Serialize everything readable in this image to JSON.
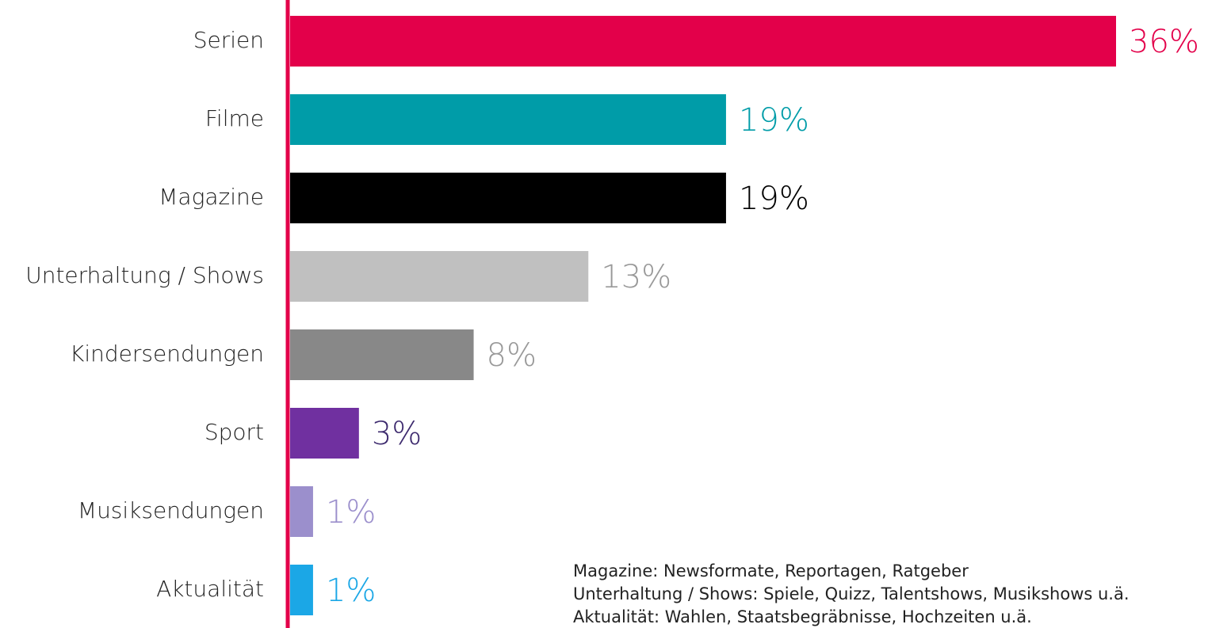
{
  "chart_data": {
    "type": "bar",
    "orientation": "horizontal",
    "categories": [
      "Serien",
      "Filme",
      "Magazine",
      "Unterhaltung / Shows",
      "Kindersendungen",
      "Sport",
      "Musiksendungen",
      "Aktualität"
    ],
    "values": [
      36,
      19,
      19,
      13,
      8,
      3,
      1,
      1
    ],
    "value_labels": [
      "36%",
      "19%",
      "19%",
      "13%",
      "8%",
      "3%",
      "1%",
      "1%"
    ],
    "colors": [
      "#e3004a",
      "#009ca8",
      "#000000",
      "#c0c0c0",
      "#888888",
      "#7030a0",
      "#9b8fcc",
      "#1ba7e6"
    ],
    "label_colors": [
      "#e3004a",
      "#009ca8",
      "#000000",
      "#999999",
      "#999999",
      "#3d2a6e",
      "#9b8fcc",
      "#1ba7e6"
    ],
    "axis_color": "#e3004a",
    "notes": [
      "Magazine: Newsformate, Reportagen, Ratgeber",
      "Unterhaltung / Shows: Spiele, Quizz, Talentshows, Musikshows u.ä.",
      "Aktualität: Wahlen, Staatsbegräbnisse, Hochzeiten u.ä."
    ]
  }
}
